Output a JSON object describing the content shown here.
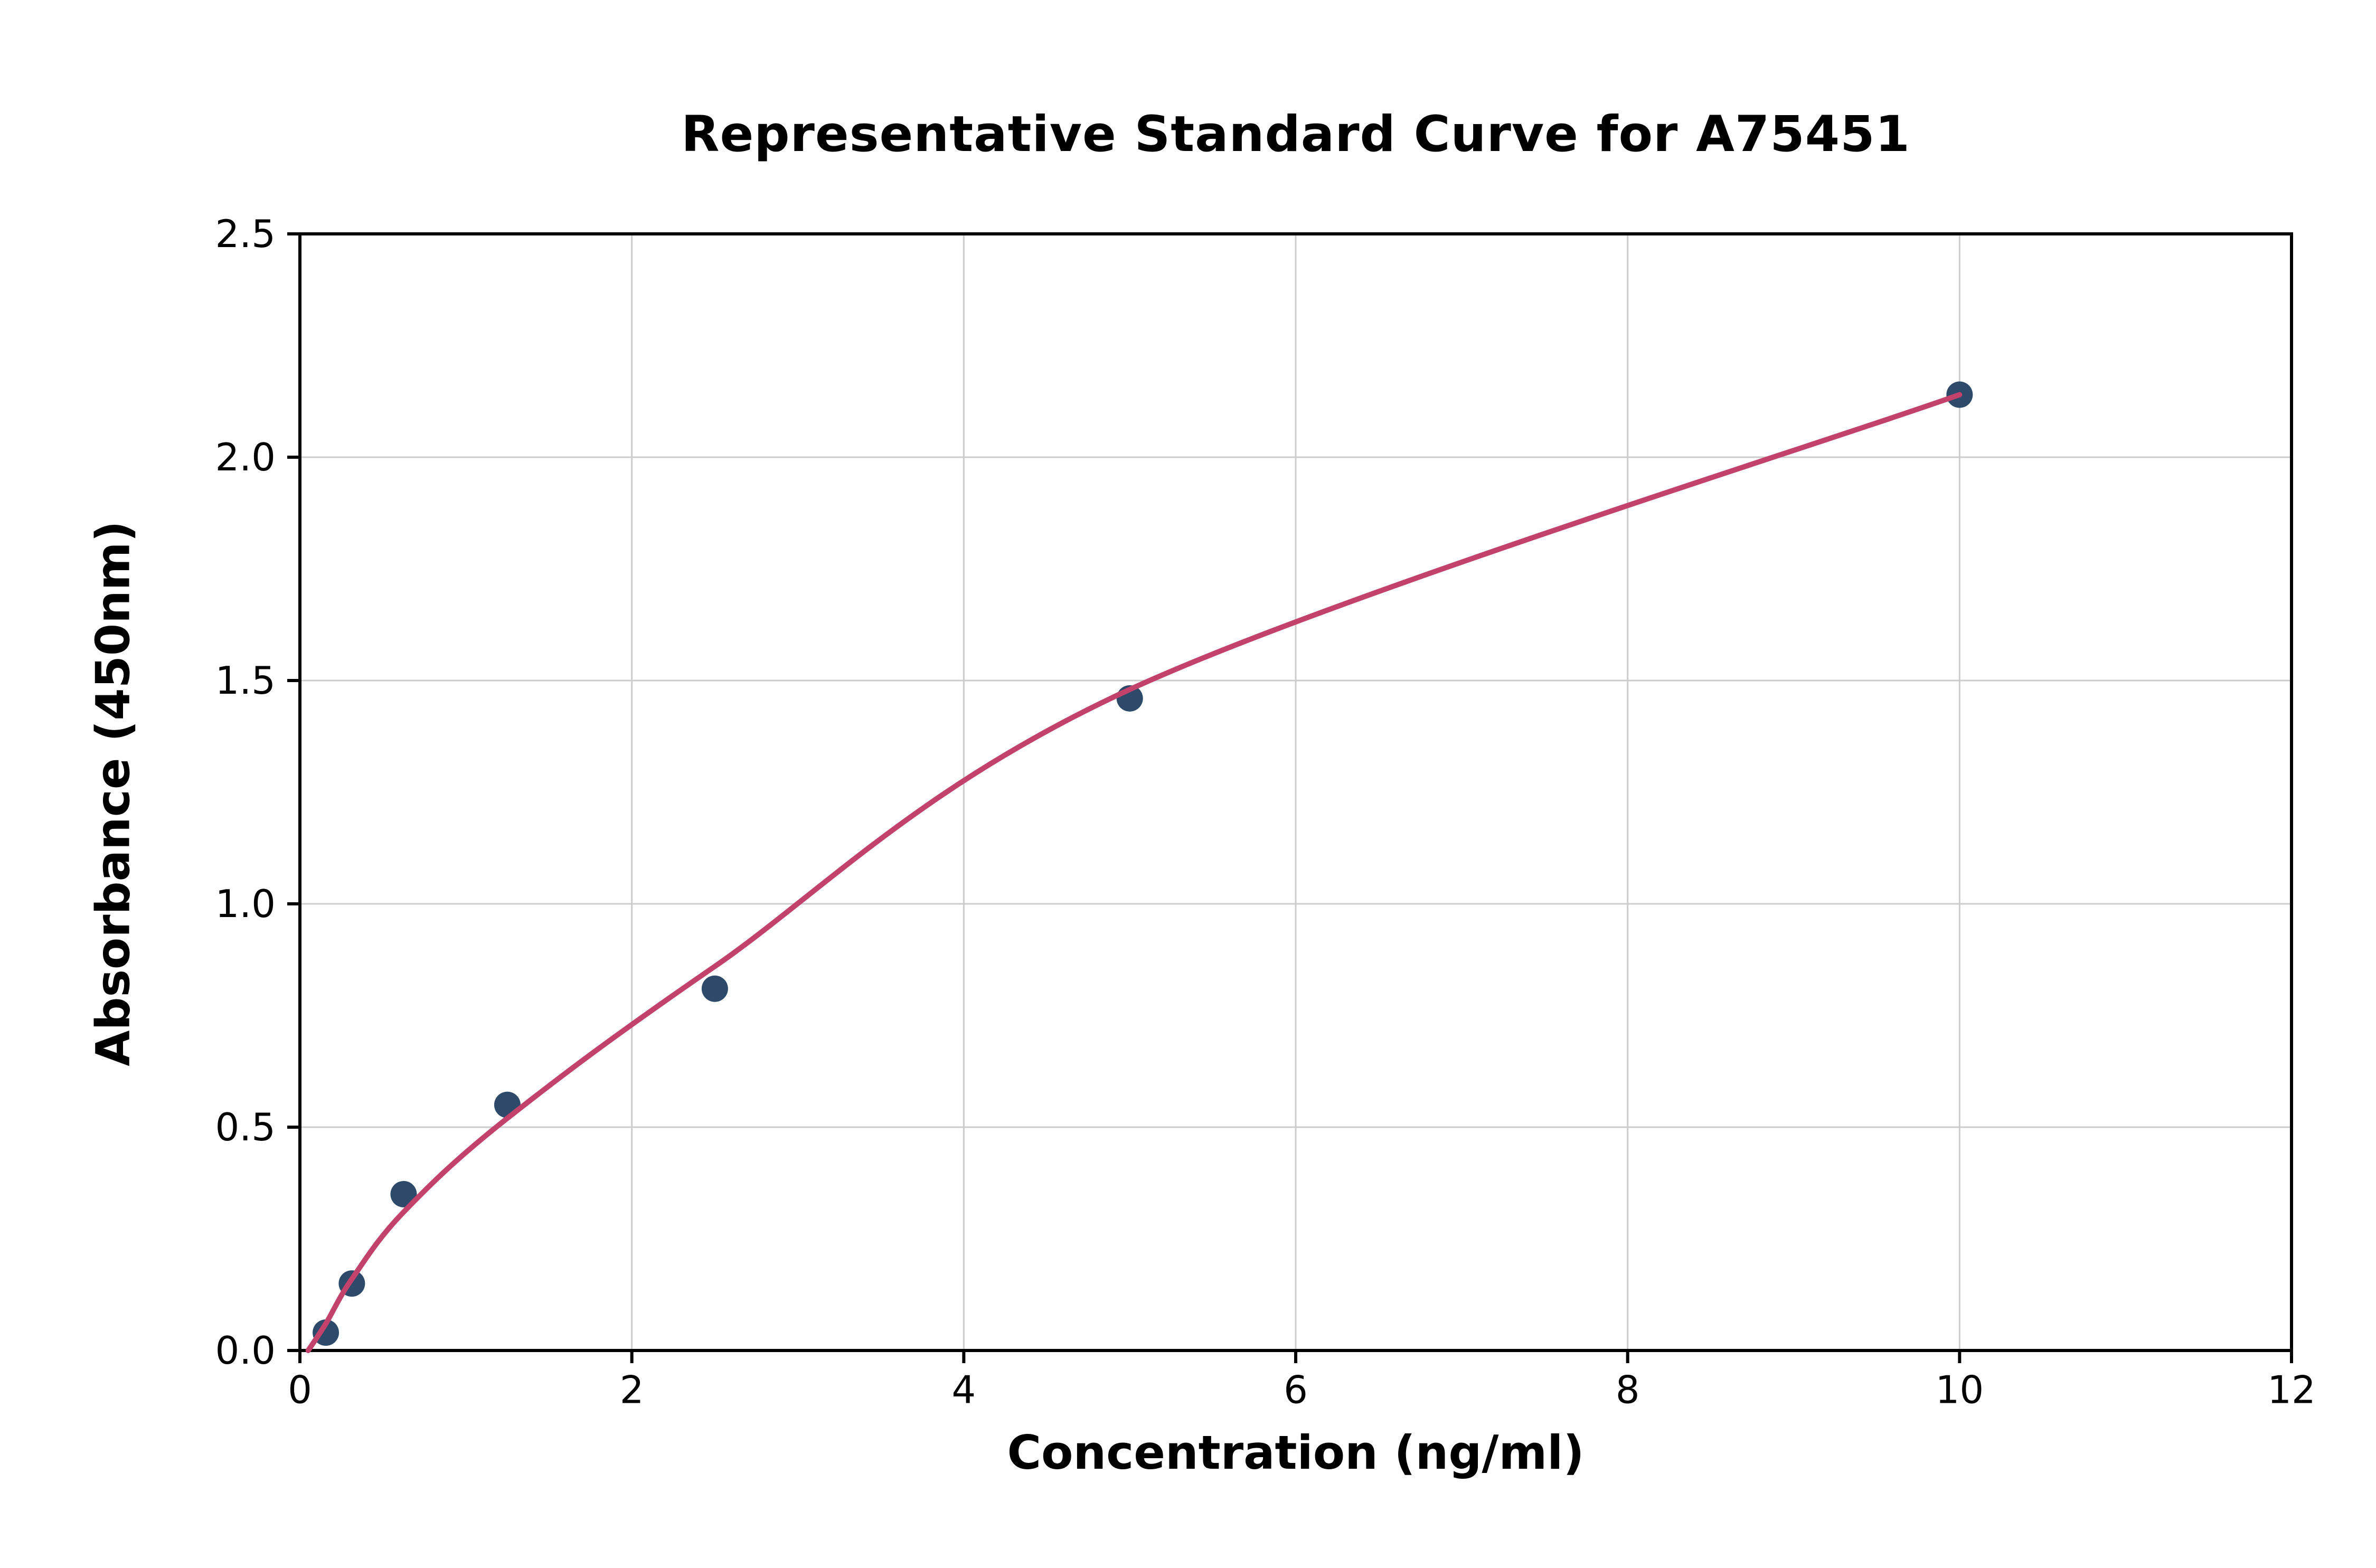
{
  "page": {
    "background": "#ffffff"
  },
  "chart_data": {
    "type": "scatter",
    "title": "Representative Standard Curve for A75451",
    "xlabel": "Concentration (ng/ml)",
    "ylabel": "Absorbance (450nm)",
    "xlim": [
      0,
      12
    ],
    "ylim": [
      0,
      2.5
    ],
    "xticks": {
      "values": [
        0,
        2,
        4,
        6,
        8,
        10,
        12
      ],
      "labels": [
        "0",
        "2",
        "4",
        "6",
        "8",
        "10",
        "12"
      ]
    },
    "yticks": {
      "values": [
        0,
        0.5,
        1,
        1.5,
        2,
        2.5
      ],
      "labels": [
        "0.0",
        "0.5",
        "1.0",
        "1.5",
        "2.0",
        "2.5"
      ]
    },
    "grid": true,
    "grid_color": "#cccccc",
    "spine_color": "#000000",
    "legend": "none",
    "series": [
      {
        "name": "standard-points",
        "type": "scatter",
        "color": "#2e4a6b",
        "points": [
          [
            0.156,
            0.04
          ],
          [
            0.313,
            0.15
          ],
          [
            0.625,
            0.35
          ],
          [
            1.25,
            0.55
          ],
          [
            2.5,
            0.81
          ],
          [
            5.0,
            1.46
          ],
          [
            10.0,
            2.14
          ]
        ]
      },
      {
        "name": "fit-curve",
        "type": "line",
        "color": "#c2426b",
        "points": [
          [
            0.05,
            0.0
          ],
          [
            0.156,
            0.06
          ],
          [
            0.313,
            0.16
          ],
          [
            0.625,
            0.31
          ],
          [
            1.25,
            0.52
          ],
          [
            2.5,
            0.86
          ],
          [
            5.0,
            1.48
          ],
          [
            10.0,
            2.14
          ]
        ]
      }
    ]
  }
}
